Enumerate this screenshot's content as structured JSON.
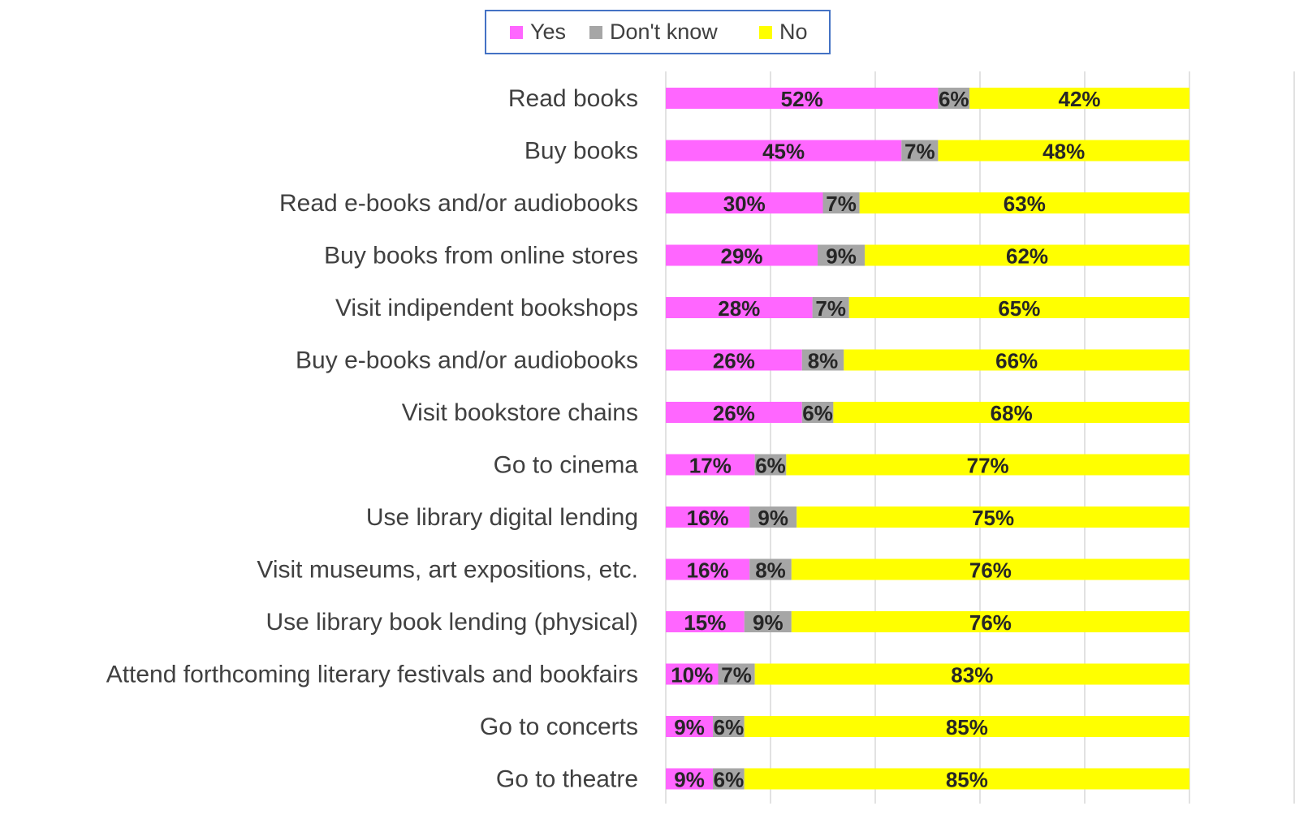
{
  "chart_data": {
    "type": "bar",
    "orientation": "horizontal",
    "stacked": true,
    "percent_stacked": true,
    "categories": [
      "Read books",
      "Buy books",
      "Read e-books and/or audiobooks",
      "Buy books from online stores",
      "Visit indipendent bookshops",
      "Buy e-books and/or audiobooks",
      "Visit bookstore chains",
      "Go to cinema",
      "Use library digital lending",
      "Visit museums, art expositions, etc.",
      "Use library book lending (physical)",
      "Attend forthcoming literary festivals and bookfairs",
      "Go to concerts",
      "Go to theatre"
    ],
    "series": [
      {
        "name": "Yes",
        "color": "#ff66ff",
        "values": [
          52,
          45,
          30,
          29,
          28,
          26,
          26,
          17,
          16,
          16,
          15,
          10,
          9,
          9
        ]
      },
      {
        "name": "Don't know",
        "color": "#a6a6a6",
        "values": [
          6,
          7,
          7,
          9,
          7,
          8,
          6,
          6,
          9,
          8,
          9,
          7,
          6,
          6
        ]
      },
      {
        "name": "No",
        "color": "#ffff00",
        "values": [
          42,
          48,
          63,
          62,
          65,
          66,
          68,
          77,
          75,
          76,
          76,
          83,
          85,
          85
        ]
      }
    ],
    "value_suffix": "%",
    "xlim": [
      0,
      120
    ],
    "x_gridline_step": 20,
    "grid": true,
    "legend": {
      "position": "top-center",
      "border_color": "#4472c4"
    }
  }
}
